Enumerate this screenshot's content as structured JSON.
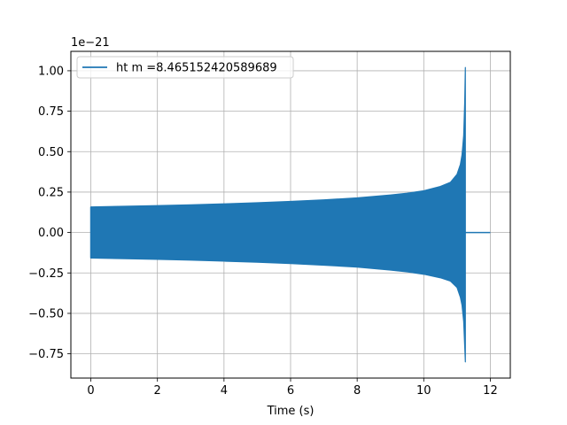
{
  "chart_data": {
    "type": "line",
    "title": "",
    "xlabel": "Time (s)",
    "ylabel": "",
    "y_offset_label": "1e−21",
    "xlim": [
      -0.6,
      12.6
    ],
    "ylim": [
      -0.9,
      1.12
    ],
    "x_ticks": [
      0,
      2,
      4,
      6,
      8,
      10,
      12
    ],
    "x_tick_labels": [
      "0",
      "2",
      "4",
      "6",
      "8",
      "10",
      "12"
    ],
    "y_ticks": [
      -0.75,
      -0.5,
      -0.25,
      0.0,
      0.25,
      0.5,
      0.75,
      1.0
    ],
    "y_tick_labels": [
      "−0.75",
      "−0.50",
      "−0.25",
      "0.00",
      "0.25",
      "0.50",
      "0.75",
      "1.00"
    ],
    "grid": true,
    "legend": {
      "placement": "top-left"
    },
    "series": [
      {
        "name": "ht m =8.465152420589689",
        "color": "#1f77b4",
        "envelope": {
          "x": [
            0.0,
            1,
            2,
            3,
            4,
            5,
            6,
            7,
            8,
            9,
            9.5,
            10,
            10.5,
            10.8,
            11.0,
            11.1,
            11.15,
            11.2,
            11.23,
            11.25
          ],
          "upper": [
            0.158,
            0.162,
            0.166,
            0.171,
            0.177,
            0.184,
            0.192,
            0.202,
            0.214,
            0.232,
            0.243,
            0.258,
            0.285,
            0.31,
            0.36,
            0.42,
            0.48,
            0.6,
            0.8,
            1.02
          ],
          "lower": [
            -0.158,
            -0.162,
            -0.166,
            -0.171,
            -0.177,
            -0.184,
            -0.192,
            -0.202,
            -0.214,
            -0.232,
            -0.243,
            -0.258,
            -0.28,
            -0.3,
            -0.34,
            -0.4,
            -0.45,
            -0.55,
            -0.7,
            -0.8
          ]
        },
        "ringdown": {
          "x": [
            11.25,
            12.0
          ],
          "y": [
            0.0,
            0.0
          ]
        }
      }
    ]
  }
}
